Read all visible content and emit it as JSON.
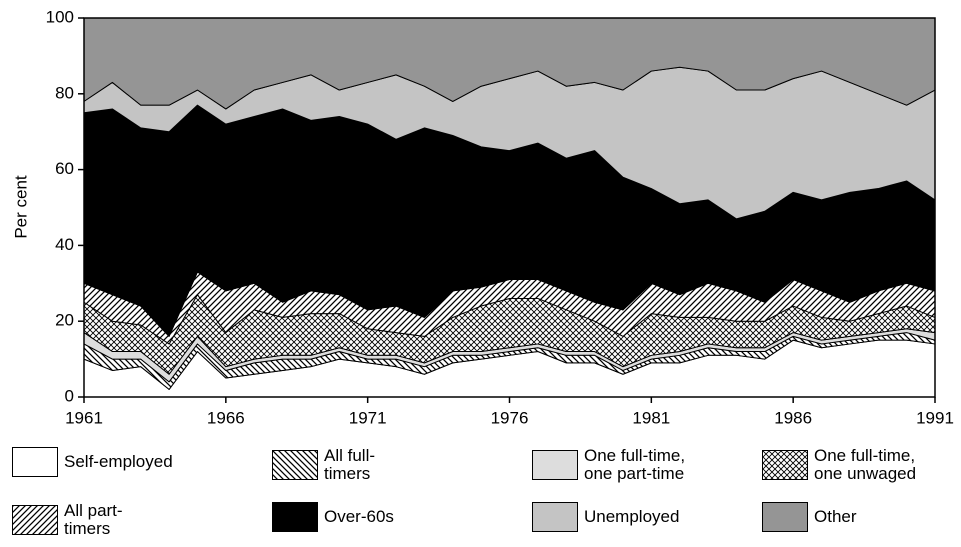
{
  "chart_data": {
    "type": "stacked_area",
    "y_label": "Per cent",
    "x": [
      1961,
      1962,
      1963,
      1964,
      1965,
      1966,
      1967,
      1968,
      1969,
      1970,
      1971,
      1972,
      1973,
      1974,
      1975,
      1976,
      1977,
      1978,
      1979,
      1980,
      1981,
      1982,
      1983,
      1984,
      1985,
      1986,
      1987,
      1988,
      1989,
      1990,
      1991
    ],
    "xlim": [
      1961,
      1991
    ],
    "xticks": [
      1961,
      1966,
      1971,
      1976,
      1981,
      1986,
      1991
    ],
    "ylim": [
      0,
      100
    ],
    "yticks": [
      0,
      20,
      40,
      60,
      80,
      100
    ],
    "series": [
      {
        "name": "Self-employed",
        "color": "#ffffff",
        "pattern": null,
        "values": [
          10,
          7,
          8,
          2,
          12,
          5,
          6,
          7,
          8,
          10,
          9,
          8,
          6,
          9,
          10,
          11,
          12,
          9,
          9,
          6,
          9,
          9,
          11,
          11,
          10,
          15,
          13,
          14,
          15,
          15,
          14
        ]
      },
      {
        "name": "All full-timers",
        "color": "#ffffff",
        "pattern": "backslash",
        "values": [
          4,
          3,
          2,
          2,
          2,
          2,
          3,
          3,
          2,
          2,
          1,
          2,
          2,
          2,
          1,
          1,
          1,
          2,
          2,
          1,
          1,
          2,
          2,
          1,
          2,
          1,
          1,
          1,
          1,
          2,
          1
        ]
      },
      {
        "name": "One full-time, one part-time",
        "color": "#dddddd",
        "pattern": null,
        "values": [
          3,
          2,
          2,
          2,
          2,
          1,
          1,
          1,
          1,
          1,
          1,
          1,
          1,
          1,
          1,
          1,
          1,
          1,
          1,
          1,
          1,
          1,
          1,
          1,
          1,
          1,
          1,
          1,
          1,
          1,
          2
        ]
      },
      {
        "name": "One full-time, one unwaged",
        "color": "#ffffff",
        "pattern": "crosshatch",
        "values": [
          8,
          8,
          7,
          8,
          11,
          9,
          13,
          10,
          11,
          9,
          7,
          6,
          7,
          9,
          12,
          13,
          12,
          11,
          8,
          8,
          11,
          9,
          7,
          7,
          7,
          7,
          6,
          4,
          5,
          6,
          4
        ]
      },
      {
        "name": "All part-timers",
        "color": "#ffffff",
        "pattern": "slash",
        "values": [
          5,
          7,
          5,
          2,
          6,
          11,
          7,
          4,
          6,
          5,
          5,
          7,
          5,
          7,
          5,
          5,
          5,
          5,
          5,
          7,
          8,
          6,
          9,
          8,
          5,
          7,
          7,
          5,
          6,
          6,
          7
        ]
      },
      {
        "name": "Over-60s",
        "color": "#000000",
        "pattern": null,
        "values": [
          45,
          49,
          47,
          54,
          44,
          44,
          44,
          51,
          45,
          47,
          49,
          44,
          50,
          41,
          37,
          34,
          36,
          35,
          40,
          35,
          25,
          24,
          22,
          19,
          24,
          23,
          24,
          29,
          27,
          27,
          24
        ]
      },
      {
        "name": "Unemployed",
        "color": "#c4c4c4",
        "pattern": null,
        "values": [
          3,
          7,
          6,
          7,
          4,
          4,
          7,
          7,
          12,
          7,
          11,
          17,
          11,
          9,
          16,
          19,
          19,
          19,
          18,
          23,
          31,
          36,
          34,
          34,
          32,
          30,
          34,
          29,
          25,
          20,
          29
        ]
      },
      {
        "name": "Other",
        "color": "#959595",
        "pattern": null,
        "values": [
          22,
          17,
          23,
          23,
          19,
          24,
          19,
          17,
          15,
          19,
          17,
          15,
          18,
          22,
          18,
          16,
          14,
          18,
          17,
          19,
          14,
          13,
          14,
          19,
          19,
          16,
          14,
          17,
          20,
          23,
          19
        ]
      }
    ]
  }
}
